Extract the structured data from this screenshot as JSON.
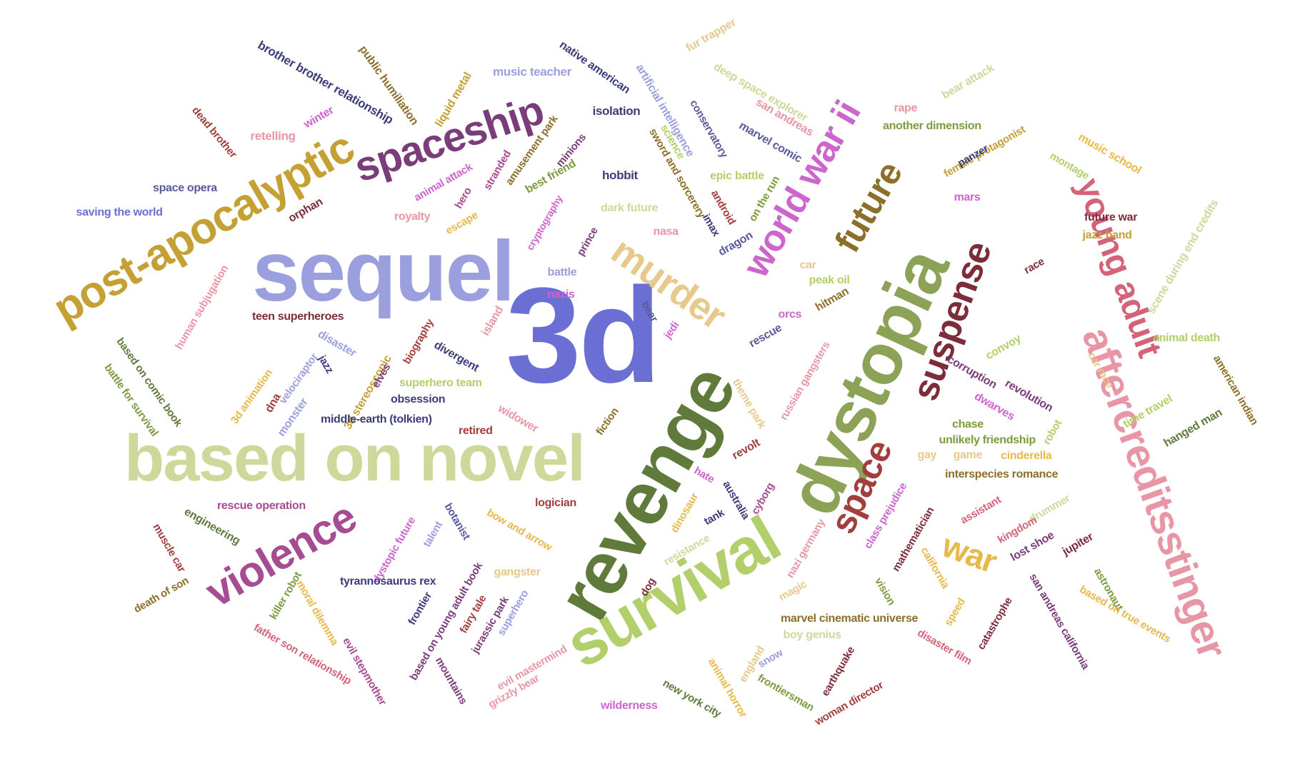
{
  "title": "",
  "palette": [
    "#6b6fd4",
    "#5f7a3a",
    "#8ca257",
    "#b3cf6b",
    "#cdd99b",
    "#9b9fdd",
    "#c4a035",
    "#7a3d7a",
    "#a54c93",
    "#e6c98b",
    "#d4637a",
    "#e896a6",
    "#cc66cc",
    "#8b6f2a",
    "#7d2d3a",
    "#8a2f2f",
    "#3c3c7a",
    "#5a5a9a",
    "#b5b5de",
    "#e7b94a",
    "#7c9b3e",
    "#a23e3e"
  ],
  "words": [
    {
      "text": "3d",
      "color": "#6b6fd4"
    },
    {
      "text": "revenge",
      "color": "#5f7a3a"
    },
    {
      "text": "dystopia",
      "color": "#8ca257"
    },
    {
      "text": "sequel",
      "color": "#9b9fdd"
    },
    {
      "text": "based on novel",
      "color": "#cdd99b"
    },
    {
      "text": "survival",
      "color": "#b3cf6b"
    },
    {
      "text": "aftercreditsstinger",
      "color": "#e896a6"
    },
    {
      "text": "post-apocalyptic",
      "color": "#c4a035"
    },
    {
      "text": "spaceship",
      "color": "#7a3d7a"
    },
    {
      "text": "violence",
      "color": "#a54c93"
    },
    {
      "text": "world war ii",
      "color": "#cc66cc"
    },
    {
      "text": "murder",
      "color": "#e6c98b"
    },
    {
      "text": "future",
      "color": "#8b6f2a"
    },
    {
      "text": "suspense",
      "color": "#7d2d3a"
    },
    {
      "text": "young adult",
      "color": "#d4637a"
    },
    {
      "text": "space",
      "color": "#a23e3e"
    },
    {
      "text": "war",
      "color": "#e7b94a"
    },
    {
      "text": "brother brother relationship",
      "color": "#3c3c7a"
    },
    {
      "text": "public humiliation",
      "color": "#8b6f2a"
    },
    {
      "text": "liquid metal",
      "color": "#c4a035"
    },
    {
      "text": "music teacher",
      "color": "#9b9fdd"
    },
    {
      "text": "native american",
      "color": "#3c3c7a"
    },
    {
      "text": "artificial intelligence",
      "color": "#9b9fdd"
    },
    {
      "text": "fur trapper",
      "color": "#e6c98b"
    },
    {
      "text": "deep space explorer",
      "color": "#cdd99b"
    },
    {
      "text": "bear attack",
      "color": "#cdd99b"
    },
    {
      "text": "dead brother",
      "color": "#a23e3e"
    },
    {
      "text": "winter",
      "color": "#cc66cc"
    },
    {
      "text": "retelling",
      "color": "#e896a6"
    },
    {
      "text": "isolation",
      "color": "#3c3c7a"
    },
    {
      "text": "amusement park",
      "color": "#8b6f2a"
    },
    {
      "text": "conservatory",
      "color": "#5a5a9a"
    },
    {
      "text": "san andreas",
      "color": "#e896a6"
    },
    {
      "text": "marvel comic",
      "color": "#5a5a9a"
    },
    {
      "text": "rape",
      "color": "#e896a6"
    },
    {
      "text": "another dimension",
      "color": "#7c9b3e"
    },
    {
      "text": "female protagonist",
      "color": "#c4a035"
    },
    {
      "text": "music school",
      "color": "#e7b94a"
    },
    {
      "text": "montage",
      "color": "#b3cf6b"
    },
    {
      "text": "panzer",
      "color": "#3c3c7a"
    },
    {
      "text": "space opera",
      "color": "#5a5a9a"
    },
    {
      "text": "saving the world",
      "color": "#6b6fd4"
    },
    {
      "text": "animal attack",
      "color": "#cc66cc"
    },
    {
      "text": "stranded",
      "color": "#a54c93"
    },
    {
      "text": "minions",
      "color": "#7a3d7a"
    },
    {
      "text": "best friend",
      "color": "#7c9b3e"
    },
    {
      "text": "hobbit",
      "color": "#3c3c7a"
    },
    {
      "text": "sword and sorcerery",
      "color": "#8b6f2a"
    },
    {
      "text": "science",
      "color": "#b3cf6b"
    },
    {
      "text": "epic battle",
      "color": "#b3cf6b"
    },
    {
      "text": "android",
      "color": "#a23e3e"
    },
    {
      "text": "on the run",
      "color": "#7c9b3e"
    },
    {
      "text": "mars",
      "color": "#cc66cc"
    },
    {
      "text": "future war",
      "color": "#7d2d3a"
    },
    {
      "text": "jazz band",
      "color": "#c4a035"
    },
    {
      "text": "scene during end credits",
      "color": "#cdd99b"
    },
    {
      "text": "hero",
      "color": "#a54c93"
    },
    {
      "text": "orphan",
      "color": "#7d2d3a"
    },
    {
      "text": "royalty",
      "color": "#e896a6"
    },
    {
      "text": "escape",
      "color": "#e7b94a"
    },
    {
      "text": "cryptography",
      "color": "#cc66cc"
    },
    {
      "text": "prince",
      "color": "#7a3d7a"
    },
    {
      "text": "dark future",
      "color": "#cdd99b"
    },
    {
      "text": "nasa",
      "color": "#e896a6"
    },
    {
      "text": "imax",
      "color": "#3c3c7a"
    },
    {
      "text": "dragon",
      "color": "#5a5a9a"
    },
    {
      "text": "race",
      "color": "#7d2d3a"
    },
    {
      "text": "human subjugation",
      "color": "#e896a6"
    },
    {
      "text": "battle",
      "color": "#9b9fdd"
    },
    {
      "text": "nazis",
      "color": "#cc66cc"
    },
    {
      "text": "car",
      "color": "#e6c98b"
    },
    {
      "text": "peak oil",
      "color": "#b3cf6b"
    },
    {
      "text": "hitman",
      "color": "#8b6f2a"
    },
    {
      "text": "teen superheroes",
      "color": "#7d2d3a"
    },
    {
      "text": "based on comic book",
      "color": "#5f7a3a"
    },
    {
      "text": "battle for survival",
      "color": "#7c9b3e"
    },
    {
      "text": "island",
      "color": "#e896a6"
    },
    {
      "text": "bear",
      "color": "#5a5a9a"
    },
    {
      "text": "jedi",
      "color": "#cc66cc"
    },
    {
      "text": "orcs",
      "color": "#cc66cc"
    },
    {
      "text": "rescue",
      "color": "#5a5a9a"
    },
    {
      "text": "velociraptor",
      "color": "#9b9fdd"
    },
    {
      "text": "disaster",
      "color": "#9b9fdd"
    },
    {
      "text": "jazz",
      "color": "#3c3c7a"
    },
    {
      "text": "3d stereoscopic",
      "color": "#c4a035"
    },
    {
      "text": "biography",
      "color": "#a23e3e"
    },
    {
      "text": "divergent",
      "color": "#3c3c7a"
    },
    {
      "text": "elves",
      "color": "#7a3d7a"
    },
    {
      "text": "superhero team",
      "color": "#b3cf6b"
    },
    {
      "text": "obsession",
      "color": "#3c3c7a"
    },
    {
      "text": "middle-earth (tolkien)",
      "color": "#3c3c7a"
    },
    {
      "text": "3d animation",
      "color": "#e7b94a"
    },
    {
      "text": "dna",
      "color": "#a23e3e"
    },
    {
      "text": "monster",
      "color": "#9b9fdd"
    },
    {
      "text": "retired",
      "color": "#a23e3e"
    },
    {
      "text": "widower",
      "color": "#e896a6"
    },
    {
      "text": "fiction",
      "color": "#8b6f2a"
    },
    {
      "text": "theme park",
      "color": "#e6c98b"
    },
    {
      "text": "russian gangsters",
      "color": "#e896a6"
    },
    {
      "text": "convoy",
      "color": "#b3cf6b"
    },
    {
      "text": "corruption",
      "color": "#7a3d7a"
    },
    {
      "text": "revolution",
      "color": "#7a3d7a"
    },
    {
      "text": "dwarves",
      "color": "#cc66cc"
    },
    {
      "text": "chase",
      "color": "#7c9b3e"
    },
    {
      "text": "unlikely friendship",
      "color": "#7c9b3e"
    },
    {
      "text": "game",
      "color": "#e6c98b"
    },
    {
      "text": "cinderella",
      "color": "#e7b94a"
    },
    {
      "text": "robot",
      "color": "#b3cf6b"
    },
    {
      "text": "car race",
      "color": "#e6c98b"
    },
    {
      "text": "time travel",
      "color": "#b3cf6b"
    },
    {
      "text": "animal death",
      "color": "#b3cf6b"
    },
    {
      "text": "hanged man",
      "color": "#5f7a3a"
    },
    {
      "text": "american indian",
      "color": "#8b6f2a"
    },
    {
      "text": "revolt",
      "color": "#a23e3e"
    },
    {
      "text": "gay",
      "color": "#e6c98b"
    },
    {
      "text": "interspecies romance",
      "color": "#8b6f2a"
    },
    {
      "text": "hate",
      "color": "#cc66cc"
    },
    {
      "text": "australia",
      "color": "#3c3c7a"
    },
    {
      "text": "cyborg",
      "color": "#a54c93"
    },
    {
      "text": "dinosaur",
      "color": "#e7b94a"
    },
    {
      "text": "tank",
      "color": "#3c3c7a"
    },
    {
      "text": "nazi germany",
      "color": "#e896a6"
    },
    {
      "text": "class prejudice",
      "color": "#cc66cc"
    },
    {
      "text": "mathematician",
      "color": "#7d2d3a"
    },
    {
      "text": "assistant",
      "color": "#d4637a"
    },
    {
      "text": "drummer",
      "color": "#cdd99b"
    },
    {
      "text": "kingdom",
      "color": "#d4637a"
    },
    {
      "text": "lost shoe",
      "color": "#7a3d7a"
    },
    {
      "text": "jupiter",
      "color": "#7d2d3a"
    },
    {
      "text": "muscle car",
      "color": "#a23e3e"
    },
    {
      "text": "engineering",
      "color": "#5f7a3a"
    },
    {
      "text": "rescue operation",
      "color": "#a54c93"
    },
    {
      "text": "logician",
      "color": "#a23e3e"
    },
    {
      "text": "botanist",
      "color": "#5a5a9a"
    },
    {
      "text": "dystopic future",
      "color": "#cc66cc"
    },
    {
      "text": "talent",
      "color": "#9b9fdd"
    },
    {
      "text": "bow and arrow",
      "color": "#e7b94a"
    },
    {
      "text": "resistance",
      "color": "#cdd99b"
    },
    {
      "text": "magic",
      "color": "#e6c98b"
    },
    {
      "text": "california",
      "color": "#e7b94a"
    },
    {
      "text": "speed",
      "color": "#e7b94a"
    },
    {
      "text": "catastrophe",
      "color": "#7d2d3a"
    },
    {
      "text": "san andreas california",
      "color": "#7a3d7a"
    },
    {
      "text": "astronaut",
      "color": "#7c9b3e"
    },
    {
      "text": "based on true events",
      "color": "#e7b94a"
    },
    {
      "text": "death of son",
      "color": "#8b6f2a"
    },
    {
      "text": "killer robot",
      "color": "#7c9b3e"
    },
    {
      "text": "moral dilemma",
      "color": "#e7b94a"
    },
    {
      "text": "tyrannosaurus rex",
      "color": "#3c3c7a"
    },
    {
      "text": "frontier",
      "color": "#3c3c7a"
    },
    {
      "text": "based on young adult book",
      "color": "#7a3d7a"
    },
    {
      "text": "fairy tale",
      "color": "#a23e3e"
    },
    {
      "text": "jurassic park",
      "color": "#7a3d7a"
    },
    {
      "text": "superhero",
      "color": "#9b9fdd"
    },
    {
      "text": "gangster",
      "color": "#e6c98b"
    },
    {
      "text": "dog",
      "color": "#7d2d3a"
    },
    {
      "text": "vision",
      "color": "#7c9b3e"
    },
    {
      "text": "marvel cinematic universe",
      "color": "#8b6f2a"
    },
    {
      "text": "boy genius",
      "color": "#cdd99b"
    },
    {
      "text": "father son relationship",
      "color": "#d4637a"
    },
    {
      "text": "evil stepmother",
      "color": "#a54c93"
    },
    {
      "text": "evil mastermind",
      "color": "#e896a6"
    },
    {
      "text": "mountains",
      "color": "#7a3d7a"
    },
    {
      "text": "grizzly bear",
      "color": "#e896a6"
    },
    {
      "text": "england",
      "color": "#e6c98b"
    },
    {
      "text": "snow",
      "color": "#9b9fdd"
    },
    {
      "text": "animal horror",
      "color": "#e7b94a"
    },
    {
      "text": "new york city",
      "color": "#5f7a3a"
    },
    {
      "text": "wilderness",
      "color": "#cc66cc"
    },
    {
      "text": "frontiersman",
      "color": "#7c9b3e"
    },
    {
      "text": "earthquake",
      "color": "#7d2d3a"
    },
    {
      "text": "woman director",
      "color": "#a23e3e"
    },
    {
      "text": "disaster film",
      "color": "#d4637a"
    }
  ]
}
